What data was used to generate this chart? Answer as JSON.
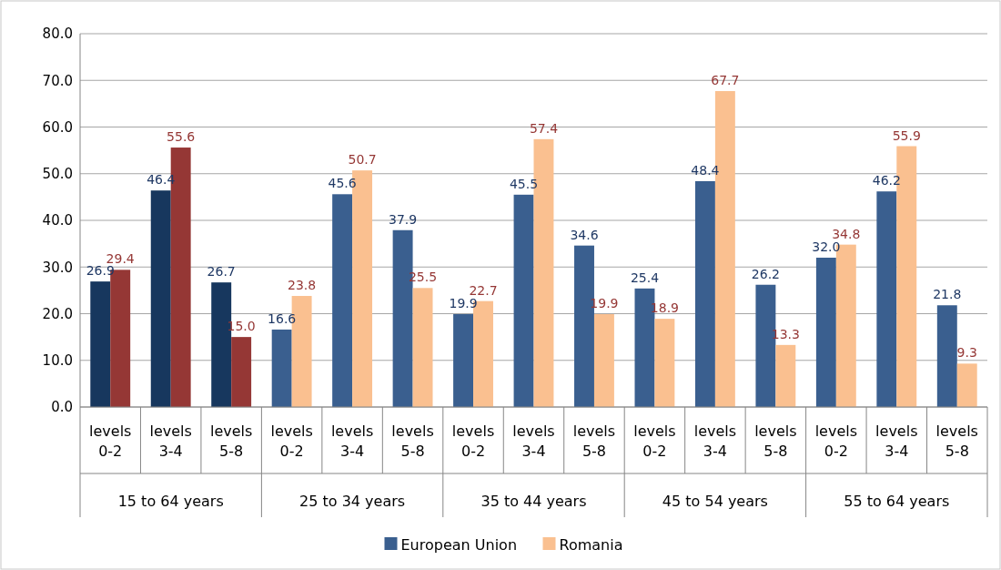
{
  "chart_data": {
    "type": "bar",
    "categories": [
      "levels 0-2",
      "levels 3-4",
      "levels 5-8",
      "levels 0-2",
      "levels 3-4",
      "levels 5-8",
      "levels 0-2",
      "levels 3-4",
      "levels 5-8",
      "levels 0-2",
      "levels 3-4",
      "levels 5-8",
      "levels 0-2",
      "levels 3-4",
      "levels 5-8"
    ],
    "annotations": [
      "15 to 64 years",
      "25 to 34 years",
      "35 to 44 years",
      "45 to 54 years",
      "55 to 64 years"
    ],
    "series": [
      {
        "name": "European Union",
        "color": "#3a5f8f",
        "colors": [
          "#17375e",
          "#17375e",
          "#17375e",
          "#3a5f8f",
          "#3a5f8f",
          "#3a5f8f",
          "#3a5f8f",
          "#3a5f8f",
          "#3a5f8f",
          "#3a5f8f",
          "#3a5f8f",
          "#3a5f8f",
          "#3a5f8f",
          "#3a5f8f",
          "#3a5f8f"
        ],
        "values": [
          26.9,
          46.4,
          26.7,
          16.6,
          45.6,
          37.9,
          19.9,
          45.5,
          34.6,
          25.4,
          48.4,
          26.2,
          32.0,
          46.2,
          21.8
        ],
        "value_labels": [
          "26.9",
          "46.4",
          "26.7",
          "16.6",
          "45.6",
          "37.9",
          "19.9",
          "45.5",
          "34.6",
          "25.4",
          "48.4",
          "26.2",
          "32.0",
          "46.2",
          "21.8"
        ]
      },
      {
        "name": "Romania",
        "color": "#fac090",
        "colors": [
          "#953735",
          "#953735",
          "#953735",
          "#fac090",
          "#fac090",
          "#fac090",
          "#fac090",
          "#fac090",
          "#fac090",
          "#fac090",
          "#fac090",
          "#fac090",
          "#fac090",
          "#fac090",
          "#fac090"
        ],
        "values": [
          29.4,
          55.6,
          15.0,
          23.8,
          50.7,
          25.5,
          22.7,
          57.4,
          19.9,
          18.9,
          67.7,
          13.3,
          34.8,
          55.9,
          9.3
        ],
        "value_labels": [
          "29.4",
          "55.6",
          "15.0",
          "23.8",
          "50.7",
          "25.5",
          "22.7",
          "57.4",
          "19.9",
          "18.9",
          "67.7",
          "13.3",
          "34.8",
          "55.9",
          "9.3"
        ]
      }
    ],
    "ylim": [
      0,
      80
    ],
    "yticks": [
      {
        "value": 0,
        "label": "0.0"
      },
      {
        "value": 10,
        "label": "10.0"
      },
      {
        "value": 20,
        "label": "20.0"
      },
      {
        "value": 30,
        "label": "30.0"
      },
      {
        "value": 40,
        "label": "40.0"
      },
      {
        "value": 50,
        "label": "50.0"
      },
      {
        "value": 60,
        "label": "60.0"
      },
      {
        "value": 70,
        "label": "70.0"
      },
      {
        "value": 80,
        "label": "80.0"
      }
    ],
    "grid": "y",
    "legend": "bottom"
  }
}
